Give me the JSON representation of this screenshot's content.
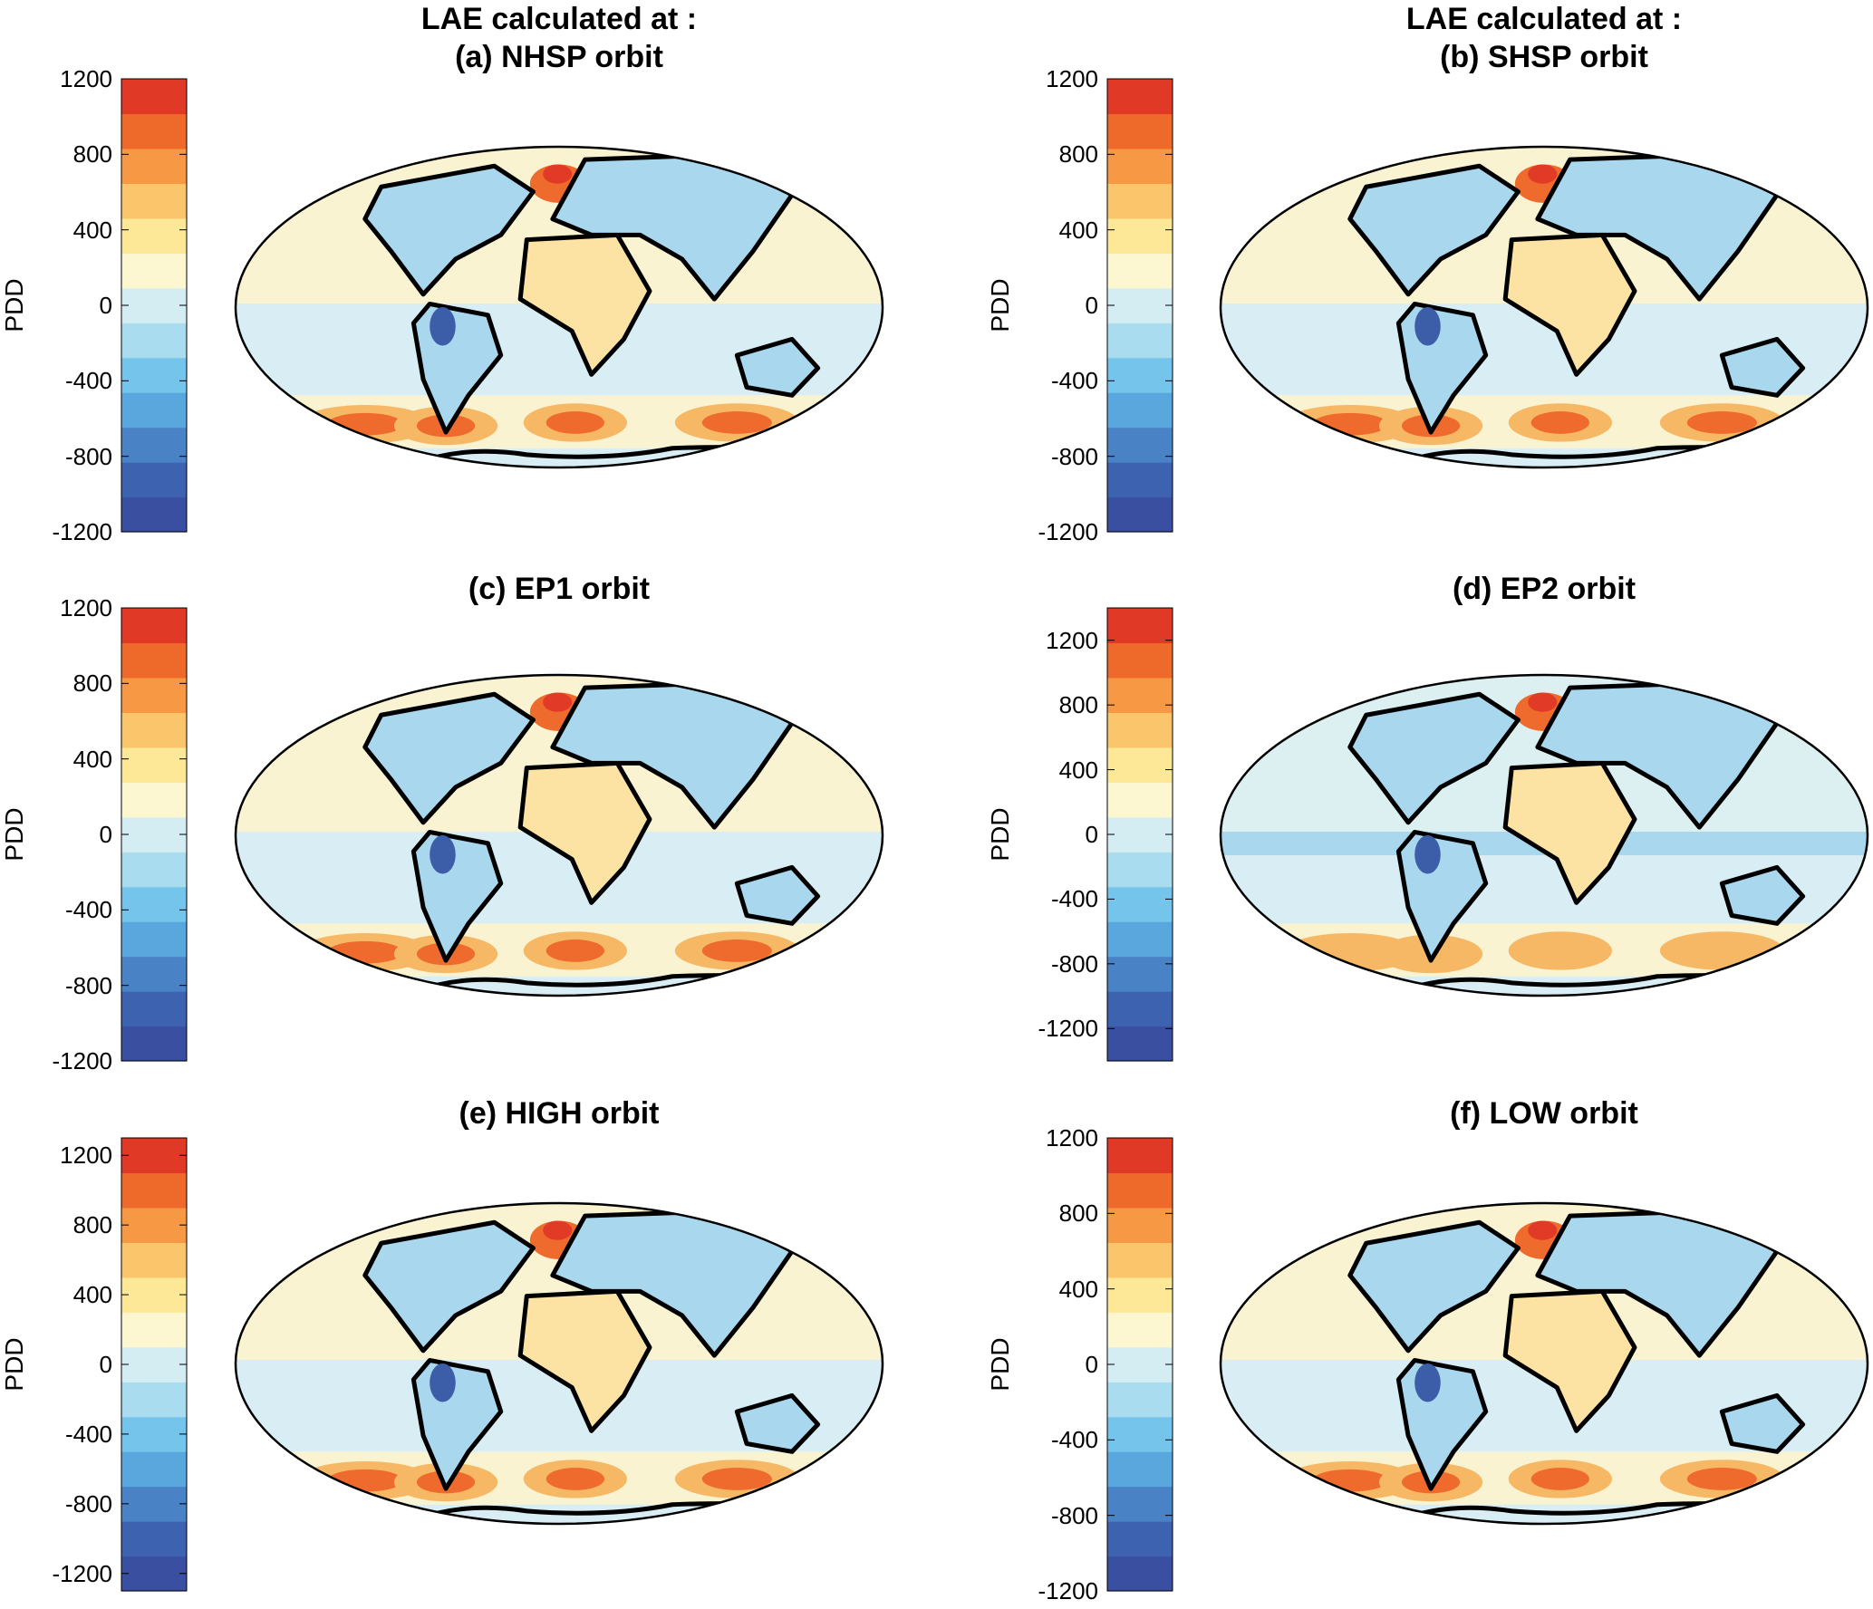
{
  "figure": {
    "colorbar_colors": [
      "#3a4fa0",
      "#3c62b0",
      "#4a82c6",
      "#5aa7de",
      "#74c4ec",
      "#a8dcee",
      "#d3edf3",
      "#fdf7d1",
      "#fde898",
      "#fbc56b",
      "#f79844",
      "#ee6a2b",
      "#e03a26"
    ],
    "map_colors": {
      "ocean_neutral": "#f9f3d2",
      "cool": "#d8eef4",
      "cooler": "#a9d8ee",
      "warm": "#fce3a3",
      "warmer": "#f7b866",
      "hot": "#ef6b2d",
      "hottest": "#e13a27",
      "coast": "#000000",
      "cold_land": "#5aa0d8",
      "coldest_land": "#3c5ea8"
    }
  },
  "panels": [
    {
      "id": "a",
      "title_line1": "LAE calculated at :",
      "title_line2": "(a) NHSP orbit",
      "colorbar_label": "PDD",
      "ticks": [
        "1200",
        "800",
        "400",
        "0",
        "-400",
        "-800",
        "-1200"
      ],
      "chart_data": {
        "type": "heatmap",
        "title": "LAE calculated at : (a) NHSP orbit",
        "colorbar_label": "PDD",
        "clim": [
          -1200,
          1200
        ],
        "ticks": [
          1200,
          800,
          400,
          0,
          -400,
          -800,
          -1200
        ]
      }
    },
    {
      "id": "b",
      "title_line1": "LAE calculated at :",
      "title_line2": "(b) SHSP orbit",
      "colorbar_label": "PDD",
      "ticks": [
        "1200",
        "800",
        "400",
        "0",
        "-400",
        "-800",
        "-1200"
      ],
      "chart_data": {
        "type": "heatmap",
        "title": "LAE calculated at : (b) SHSP orbit",
        "colorbar_label": "PDD",
        "clim": [
          -1200,
          1200
        ],
        "ticks": [
          1200,
          800,
          400,
          0,
          -400,
          -800,
          -1200
        ]
      }
    },
    {
      "id": "c",
      "title_line1": "",
      "title_line2": "(c) EP1 orbit",
      "colorbar_label": "PDD",
      "ticks": [
        "1200",
        "800",
        "400",
        "0",
        "-400",
        "-800",
        "-1200"
      ],
      "chart_data": {
        "type": "heatmap",
        "title": "(c) EP1 orbit",
        "colorbar_label": "PDD",
        "clim": [
          -1200,
          1200
        ],
        "ticks": [
          1200,
          800,
          400,
          0,
          -400,
          -800,
          -1200
        ]
      }
    },
    {
      "id": "d",
      "title_line1": "",
      "title_line2": "(d) EP2 orbit",
      "colorbar_label": "PDD",
      "ticks": [
        "1200",
        "800",
        "400",
        "0",
        "-400",
        "-800",
        "-1200"
      ],
      "chart_data": {
        "type": "heatmap",
        "title": "(d) EP2 orbit",
        "colorbar_label": "PDD",
        "clim": [
          -1400,
          1400
        ],
        "ticks": [
          1200,
          800,
          400,
          0,
          -400,
          -800,
          -1200
        ]
      }
    },
    {
      "id": "e",
      "title_line1": "",
      "title_line2": "(e) HIGH orbit",
      "colorbar_label": "PDD",
      "ticks": [
        "1200",
        "800",
        "400",
        "0",
        "-400",
        "-800",
        "-1200"
      ],
      "chart_data": {
        "type": "heatmap",
        "title": "(e) HIGH orbit",
        "colorbar_label": "PDD",
        "clim": [
          -1300,
          1300
        ],
        "ticks": [
          1200,
          800,
          400,
          0,
          -400,
          -800,
          -1200
        ]
      }
    },
    {
      "id": "f",
      "title_line1": "",
      "title_line2": "(f) LOW orbit",
      "colorbar_label": "PDD",
      "ticks": [
        "1200",
        "800",
        "400",
        "0",
        "-400",
        "-800",
        "-1200"
      ],
      "chart_data": {
        "type": "heatmap",
        "title": "(f) LOW orbit",
        "colorbar_label": "PDD",
        "clim": [
          -1200,
          1200
        ],
        "ticks": [
          1200,
          800,
          400,
          0,
          -400,
          -800,
          -1200
        ]
      }
    }
  ]
}
